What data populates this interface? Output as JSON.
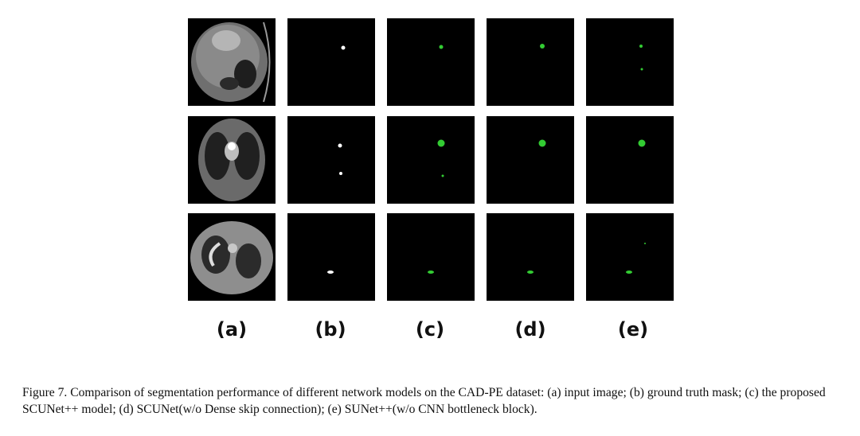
{
  "figure": {
    "labels": [
      "(a)",
      "(b)",
      "(c)",
      "(d)",
      "(e)"
    ],
    "caption": "Figure 7. Comparison of segmentation performance of different network models on the CAD-PE dataset: (a) input image; (b) ground truth mask; (c) the proposed SCUNet++ model; (d) SCUNet(w/o Dense skip connection); (e) SUNet++(w/o CNN bottleneck block)."
  }
}
